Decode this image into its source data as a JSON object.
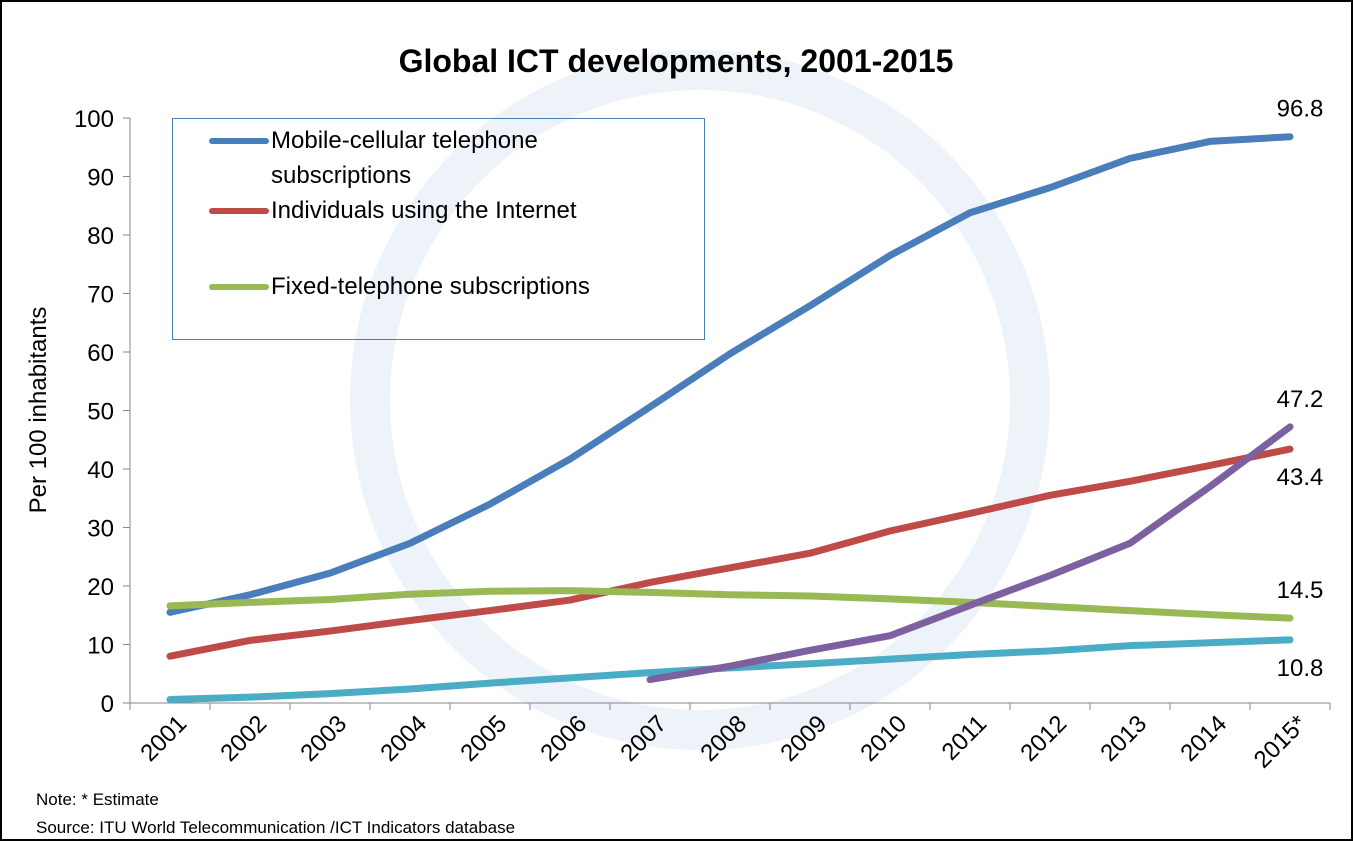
{
  "chart_data": {
    "type": "line",
    "title": "Global ICT developments, 2001-2015",
    "y_label": "Per 100 inhabitants",
    "note": "Note: * Estimate",
    "source": "Source:  ITU World Telecommunication /ICT Indicators database",
    "categories": [
      "2001",
      "2002",
      "2003",
      "2004",
      "2005",
      "2006",
      "2007",
      "2008",
      "2009",
      "2010",
      "2011",
      "2012",
      "2013",
      "2014",
      "2015*"
    ],
    "series": [
      {
        "name": "Mobile-cellular telephone subscriptions",
        "color": "#4a7ebb",
        "label_position": "above",
        "values": [
          15.5,
          18.5,
          22.2,
          27.3,
          34.0,
          41.7,
          50.6,
          59.7,
          67.9,
          76.5,
          83.8,
          88.1,
          93.1,
          96.0,
          96.8
        ]
      },
      {
        "name": "Individuals using the Internet",
        "color": "#be4b48",
        "label_position": "below",
        "values": [
          8.0,
          10.7,
          12.3,
          14.1,
          15.8,
          17.6,
          20.6,
          23.1,
          25.6,
          29.4,
          32.4,
          35.5,
          37.9,
          40.6,
          43.4
        ]
      },
      {
        "name": "Fixed-telephone subscriptions",
        "color": "#98b954",
        "label_position": "above",
        "values": [
          16.6,
          17.2,
          17.7,
          18.6,
          19.1,
          19.2,
          18.9,
          18.5,
          18.3,
          17.8,
          17.2,
          16.5,
          15.8,
          15.1,
          14.5
        ]
      },
      {
        "color": "#4bacc6",
        "label_position": "below",
        "values": [
          0.6,
          1.0,
          1.6,
          2.4,
          3.4,
          4.3,
          5.2,
          6.0,
          6.7,
          7.5,
          8.3,
          8.9,
          9.8,
          10.3,
          10.8
        ]
      },
      {
        "color": "#7d60a0",
        "label_position": "above",
        "values": [
          null,
          null,
          null,
          null,
          null,
          null,
          4.0,
          6.3,
          9.0,
          11.5,
          16.7,
          21.8,
          27.3,
          37.0,
          47.2
        ]
      }
    ],
    "data_labels": "last",
    "ylim": [
      0,
      100
    ],
    "yticks": [
      0,
      10,
      20,
      30,
      40,
      50,
      60,
      70,
      80,
      90,
      100
    ],
    "grid": false
  }
}
